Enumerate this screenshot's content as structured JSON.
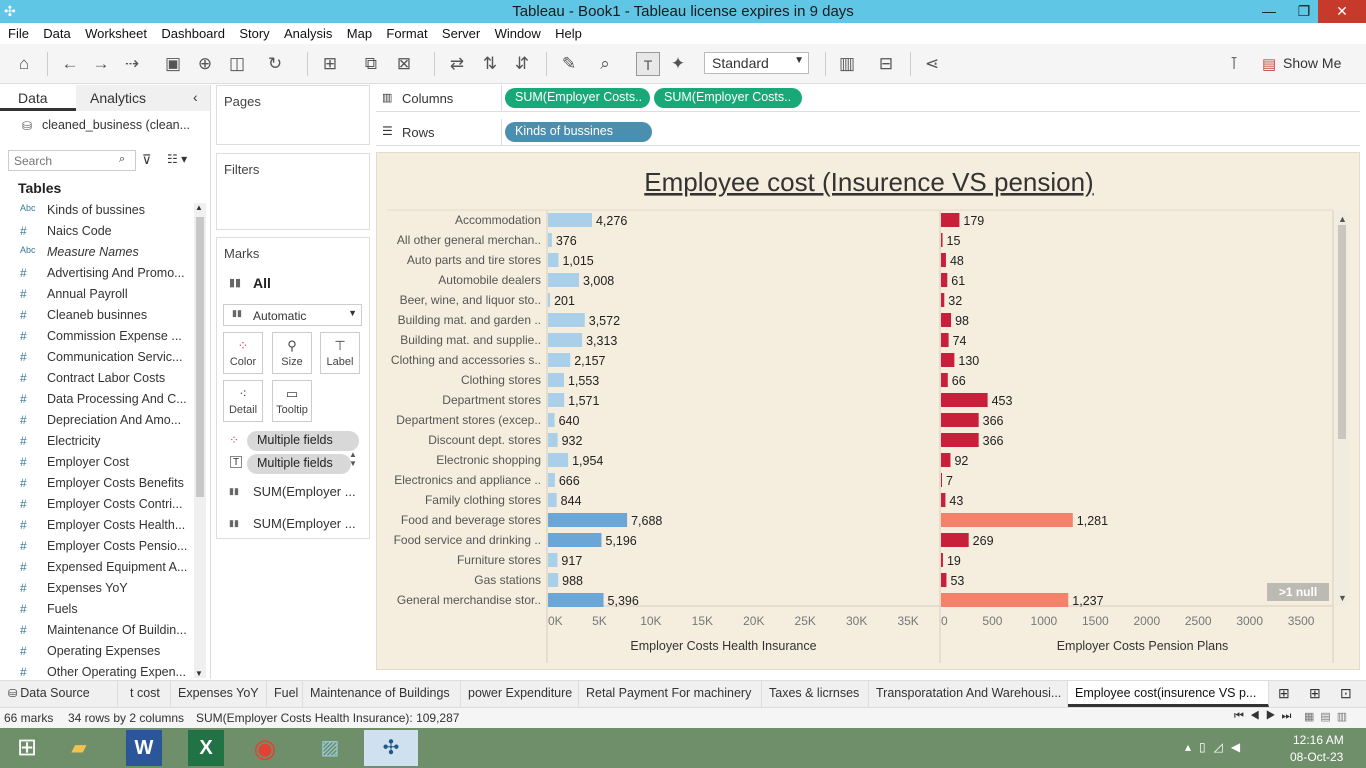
{
  "window": {
    "title": "Tableau - Book1 - Tableau license expires in 9 days"
  },
  "menu": [
    "File",
    "Data",
    "Worksheet",
    "Dashboard",
    "Story",
    "Analysis",
    "Map",
    "Format",
    "Server",
    "Window",
    "Help"
  ],
  "toolbar": {
    "fit_value": "Standard",
    "show_me": "Show Me"
  },
  "data_pane": {
    "tab_data": "Data",
    "tab_analytics": "Analytics",
    "datasource": "cleaned_business (clean...",
    "search_placeholder": "Search",
    "tables_label": "Tables",
    "fields": [
      {
        "type": "Abc",
        "name": "Kinds of bussines"
      },
      {
        "type": "#",
        "name": "Naics Code"
      },
      {
        "type": "Abc",
        "name": "Measure Names"
      },
      {
        "type": "#",
        "name": "Advertising And Promo..."
      },
      {
        "type": "#",
        "name": "Annual Payroll"
      },
      {
        "type": "#",
        "name": "Cleaneb businnes"
      },
      {
        "type": "#",
        "name": "Commission Expense ..."
      },
      {
        "type": "#",
        "name": "Communication Servic..."
      },
      {
        "type": "#",
        "name": "Contract Labor Costs"
      },
      {
        "type": "#",
        "name": "Data Processing And C..."
      },
      {
        "type": "#",
        "name": "Depreciation And Amo..."
      },
      {
        "type": "#",
        "name": "Electricity"
      },
      {
        "type": "#",
        "name": "Employer Cost"
      },
      {
        "type": "#",
        "name": "Employer Costs Benefits"
      },
      {
        "type": "#",
        "name": "Employer Costs Contri..."
      },
      {
        "type": "#",
        "name": "Employer Costs Health..."
      },
      {
        "type": "#",
        "name": "Employer Costs Pensio..."
      },
      {
        "type": "#",
        "name": "Expensed Equipment A..."
      },
      {
        "type": "#",
        "name": "Expenses YoY"
      },
      {
        "type": "#",
        "name": "Fuels"
      },
      {
        "type": "#",
        "name": "Maintenance Of Buildin..."
      },
      {
        "type": "#",
        "name": "Operating Expenses"
      },
      {
        "type": "#",
        "name": "Other Operating Expen..."
      }
    ]
  },
  "cards": {
    "pages": "Pages",
    "filters": "Filters",
    "marks": "Marks",
    "all": "All",
    "mark_type": "Automatic",
    "color": "Color",
    "size": "Size",
    "label": "Label",
    "detail": "Detail",
    "tooltip": "Tooltip",
    "mf1": "Multiple fields",
    "mf2": "Multiple fields",
    "sum1": "SUM(Employer ...",
    "sum2": "SUM(Employer ..."
  },
  "shelves": {
    "columns_label": "Columns",
    "rows_label": "Rows",
    "col_pill1": "SUM(Employer Costs..",
    "col_pill2": "SUM(Employer Costs..",
    "row_pill": "Kinds of bussines"
  },
  "chart_data": {
    "type": "bar",
    "title": "Employee cost (Insurence VS pension)",
    "categories": [
      "Accommodation",
      "All other general merchan..",
      "Auto parts and tire stores",
      "Automobile dealers",
      "Beer, wine, and liquor sto..",
      "Building mat. and garden ..",
      "Building mat. and supplie..",
      "Clothing and accessories s..",
      "Clothing stores",
      "Department stores",
      "Department stores (excep..",
      "Discount dept. stores",
      "Electronic shopping",
      "Electronics and appliance ..",
      "Family clothing stores",
      "Food and beverage stores",
      "Food service and drinking ..",
      "Furniture stores",
      "Gas stations",
      "General merchandise stor.."
    ],
    "series": [
      {
        "name": "Employer Costs Health Insurance",
        "values": [
          4276,
          376,
          1015,
          3008,
          201,
          3572,
          3313,
          2157,
          1553,
          1571,
          640,
          932,
          1954,
          666,
          844,
          7688,
          5196,
          917,
          988,
          5396
        ],
        "labels": [
          "4,276",
          "376",
          "1,015",
          "3,008",
          "201",
          "3,572",
          "3,313",
          "2,157",
          "1,553",
          "1,571",
          "640",
          "932",
          "1,954",
          "666",
          "844",
          "7,688",
          "5,196",
          "917",
          "988",
          "5,396"
        ],
        "xlim": [
          0,
          38000
        ],
        "ticks": [
          "0K",
          "5K",
          "10K",
          "15K",
          "20K",
          "25K",
          "30K",
          "35K"
        ],
        "tick_values": [
          0,
          5000,
          10000,
          15000,
          20000,
          25000,
          30000,
          35000
        ]
      },
      {
        "name": "Employer Costs Pension Plans",
        "values": [
          179,
          15,
          48,
          61,
          32,
          98,
          74,
          130,
          66,
          453,
          366,
          366,
          92,
          7,
          43,
          1281,
          269,
          19,
          53,
          1237
        ],
        "labels": [
          "179",
          "15",
          "48",
          "61",
          "32",
          "98",
          "74",
          "130",
          "66",
          "453",
          "366",
          "366",
          "92",
          "7",
          "43",
          "1,281",
          "269",
          "19",
          "53",
          "1,237"
        ],
        "xlim": [
          0,
          3800
        ],
        "ticks": [
          "0",
          "500",
          "1000",
          "1500",
          "2000",
          "2500",
          "3000",
          "3500"
        ],
        "tick_values": [
          0,
          500,
          1000,
          1500,
          2000,
          2500,
          3000,
          3500
        ]
      }
    ],
    "null_badge": ">1 null",
    "colors": {
      "health_low": "#a9cfe9",
      "health_high": "#6aa7d6",
      "pension_low": "#c8203a",
      "pension_high": "#f4826a"
    }
  },
  "sheet_tabs": {
    "datasource": "Data Source",
    "tabs": [
      "t cost",
      "Expenses YoY",
      "Fuel",
      "Maintenance of Buildings",
      "power Expenditure",
      "Retal Payment For machinery",
      "Taxes & licrnses",
      "Transporatation And Warehousi...",
      "Employee cost(insurence VS p..."
    ]
  },
  "status": {
    "marks": "66 marks",
    "dims": "34 rows by 2 columns",
    "sum": "SUM(Employer Costs Health Insurance): 109,287"
  },
  "taskbar": {
    "time": "12:16 AM",
    "date": "08-Oct-23"
  }
}
